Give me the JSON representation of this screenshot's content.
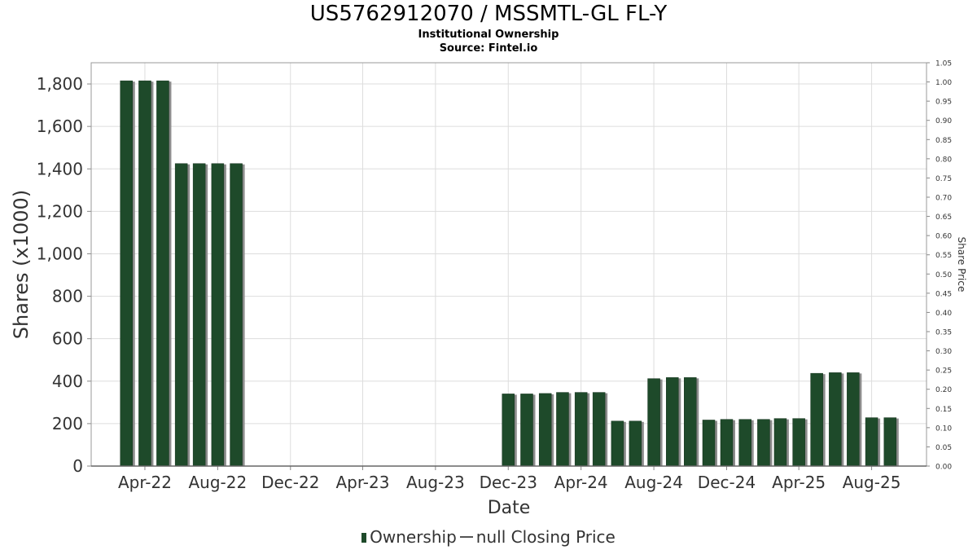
{
  "title": "US5762912070 / MSSMTL-GL FL-Y",
  "subtitle1": "Institutional Ownership",
  "subtitle2": "Source: Fintel.io",
  "legend": {
    "ownership": "Ownership",
    "price": "null Closing Price"
  },
  "colors": {
    "bar": "#1e4a2a",
    "bar_shadow": "#8c8c8c",
    "grid": "#dddddd",
    "axis": "#888888"
  },
  "chart_data": {
    "type": "bar",
    "xlabel": "Date",
    "ylabel": "Shares (x1000)",
    "y2label": "Share Price",
    "ylim": [
      0,
      1900
    ],
    "y2lim": [
      0,
      1.05
    ],
    "xlim": [
      "2022-01-01",
      "2025-11-01"
    ],
    "yticks": [
      "0",
      "200",
      "400",
      "600",
      "800",
      "1,000",
      "1,200",
      "1,400",
      "1,600",
      "1,800"
    ],
    "y2ticks": [
      "0.00",
      "0.05",
      "0.10",
      "0.15",
      "0.20",
      "0.25",
      "0.30",
      "0.35",
      "0.40",
      "0.45",
      "0.50",
      "0.55",
      "0.60",
      "0.65",
      "0.70",
      "0.75",
      "0.80",
      "0.85",
      "0.90",
      "0.95",
      "1.00",
      "1.05"
    ],
    "xticks": [
      {
        "label": "Apr-22",
        "date": "2022-04-01"
      },
      {
        "label": "Aug-22",
        "date": "2022-08-01"
      },
      {
        "label": "Dec-22",
        "date": "2022-12-01"
      },
      {
        "label": "Apr-23",
        "date": "2023-04-01"
      },
      {
        "label": "Aug-23",
        "date": "2023-08-01"
      },
      {
        "label": "Dec-23",
        "date": "2023-12-01"
      },
      {
        "label": "Apr-24",
        "date": "2024-04-01"
      },
      {
        "label": "Aug-24",
        "date": "2024-08-01"
      },
      {
        "label": "Dec-24",
        "date": "2024-12-01"
      },
      {
        "label": "Apr-25",
        "date": "2025-04-01"
      },
      {
        "label": "Aug-25",
        "date": "2025-08-01"
      }
    ],
    "grid": true,
    "legend_position": "bottom",
    "series": [
      {
        "name": "Ownership",
        "points": [
          {
            "x": "2022-03-01",
            "y": 1815
          },
          {
            "x": "2022-04-01",
            "y": 1815
          },
          {
            "x": "2022-05-01",
            "y": 1815
          },
          {
            "x": "2022-06-01",
            "y": 1425
          },
          {
            "x": "2022-07-01",
            "y": 1425
          },
          {
            "x": "2022-08-01",
            "y": 1425
          },
          {
            "x": "2022-09-01",
            "y": 1425
          },
          {
            "x": "2023-12-01",
            "y": 340
          },
          {
            "x": "2024-01-01",
            "y": 340
          },
          {
            "x": "2024-02-01",
            "y": 342
          },
          {
            "x": "2024-03-01",
            "y": 347
          },
          {
            "x": "2024-04-01",
            "y": 347
          },
          {
            "x": "2024-05-01",
            "y": 347
          },
          {
            "x": "2024-06-01",
            "y": 212
          },
          {
            "x": "2024-07-01",
            "y": 212
          },
          {
            "x": "2024-08-01",
            "y": 412
          },
          {
            "x": "2024-09-01",
            "y": 417
          },
          {
            "x": "2024-10-01",
            "y": 417
          },
          {
            "x": "2024-11-01",
            "y": 217
          },
          {
            "x": "2024-12-01",
            "y": 220
          },
          {
            "x": "2025-01-01",
            "y": 220
          },
          {
            "x": "2025-02-01",
            "y": 220
          },
          {
            "x": "2025-03-01",
            "y": 224
          },
          {
            "x": "2025-04-01",
            "y": 224
          },
          {
            "x": "2025-05-01",
            "y": 437
          },
          {
            "x": "2025-06-01",
            "y": 440
          },
          {
            "x": "2025-07-01",
            "y": 440
          },
          {
            "x": "2025-08-01",
            "y": 228
          },
          {
            "x": "2025-09-01",
            "y": 228
          }
        ]
      }
    ]
  }
}
